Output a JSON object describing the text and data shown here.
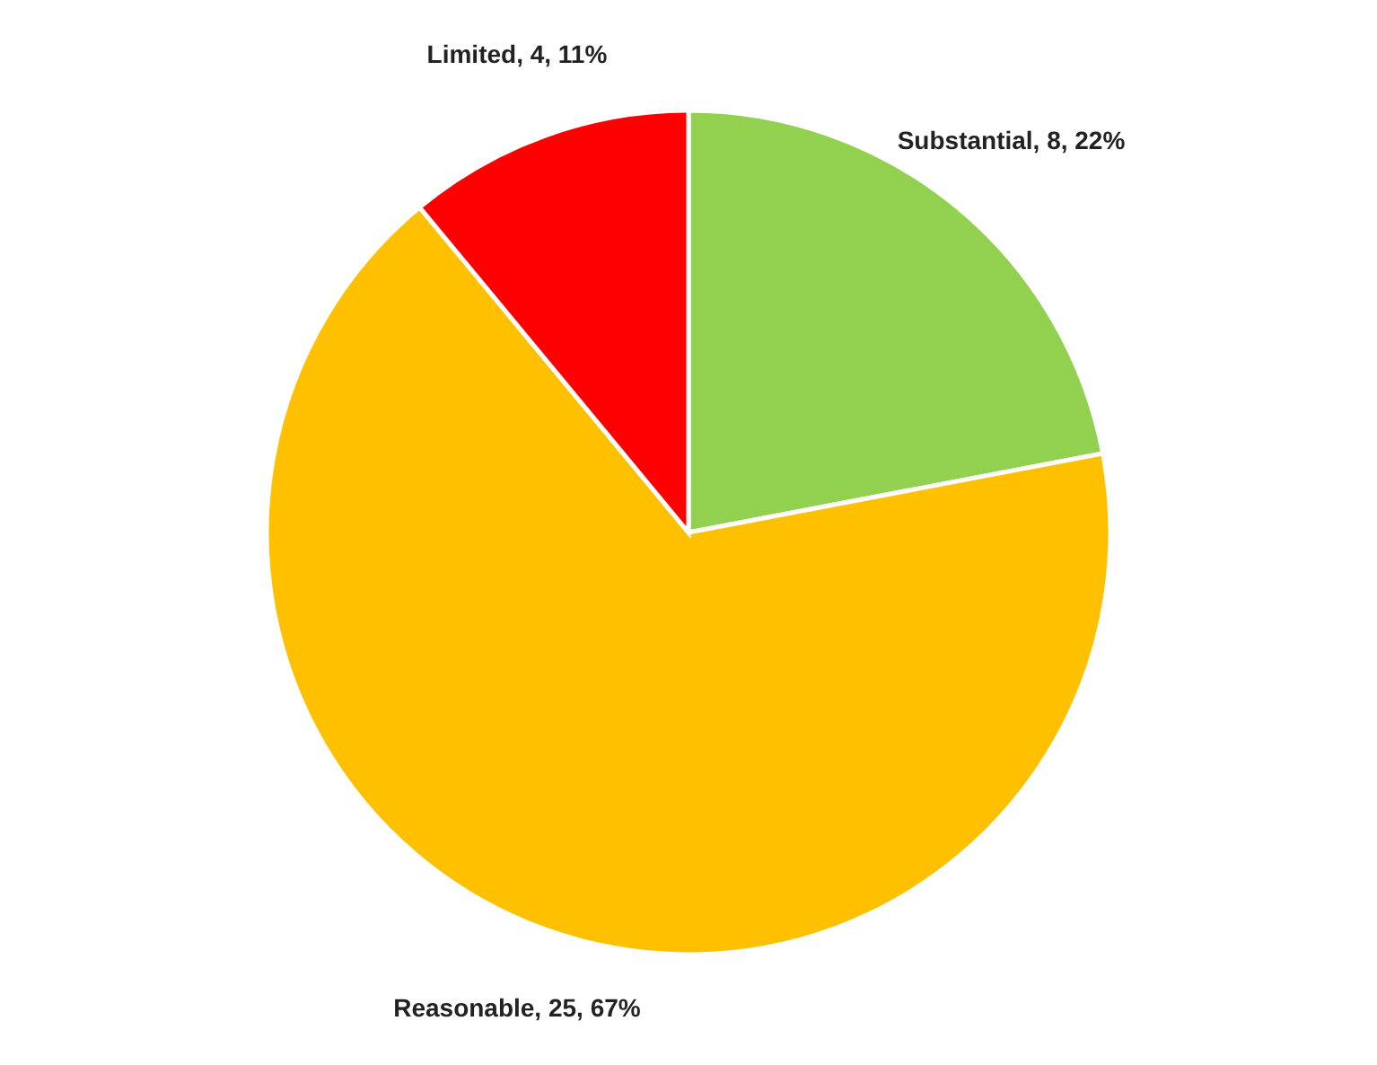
{
  "chart_data": {
    "type": "pie",
    "categories": [
      "Substantial",
      "Reasonable",
      "Limited"
    ],
    "values": [
      22,
      67,
      11
    ],
    "colors": [
      "#92d050",
      "#ffc000",
      "#ff0000"
    ],
    "value_labels": [
      "8, 22%",
      "25, 67%",
      "4, 11%"
    ]
  }
}
